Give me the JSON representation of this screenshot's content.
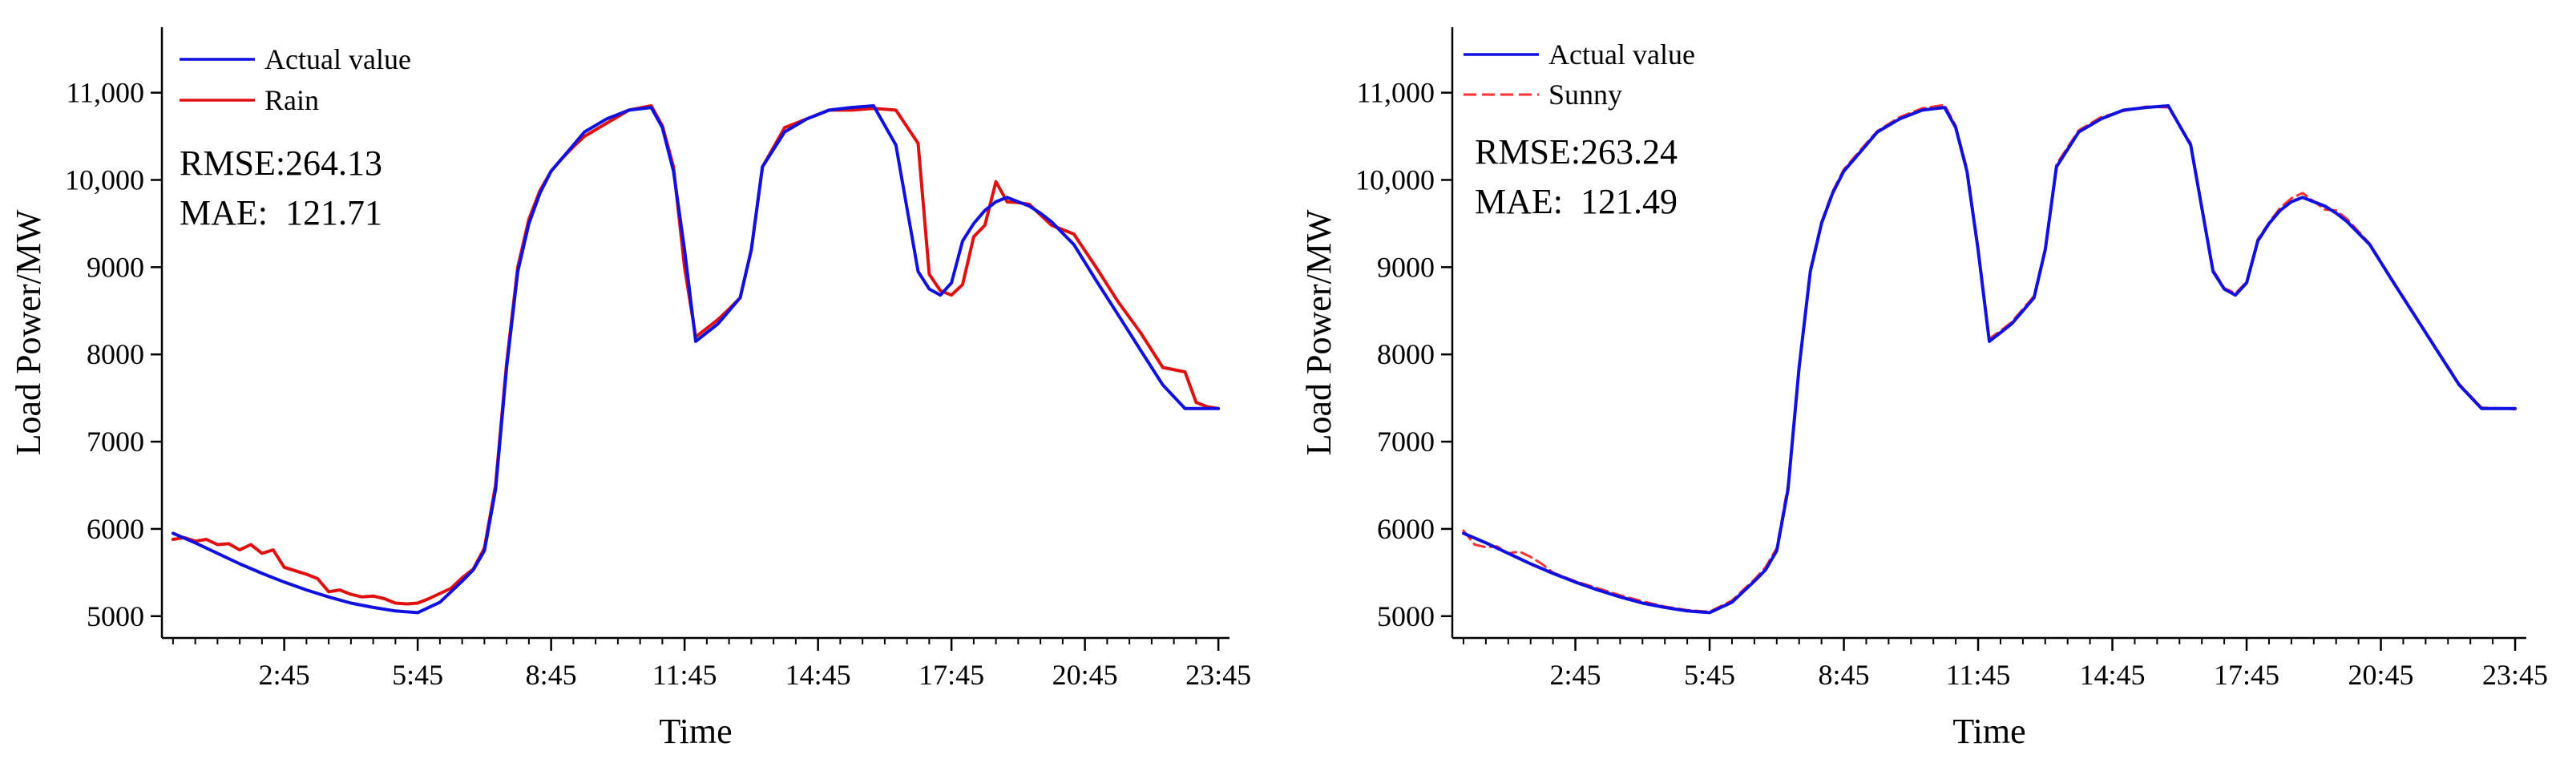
{
  "chart_data": [
    {
      "type": "line",
      "xlabel": "Time",
      "ylabel": "Load Power/MW",
      "xlim": [
        0,
        24
      ],
      "ylim": [
        4750,
        11750
      ],
      "yticks": [
        5000,
        6000,
        7000,
        8000,
        9000,
        10000,
        11000
      ],
      "ytick_labels": [
        "5000",
        "6000",
        "7000",
        "8000",
        "9000",
        "10,000",
        "11,000"
      ],
      "xticks": [
        2.75,
        5.75,
        8.75,
        11.75,
        14.75,
        17.75,
        20.75,
        23.75
      ],
      "xtick_labels": [
        "2:45",
        "5:45",
        "8:45",
        "11:45",
        "14:45",
        "17:45",
        "20:45",
        "23:45"
      ],
      "metrics": {
        "rmse": "RMSE:264.13",
        "mae": "MAE:  121.71"
      },
      "series": [
        {
          "name": "Actual value",
          "color": "#1010e0",
          "dash": "solid",
          "x": [
            0.25,
            0.75,
            1.25,
            1.75,
            2.25,
            2.75,
            3.25,
            3.75,
            4.25,
            4.75,
            5.25,
            5.75,
            6.25,
            6.5,
            6.75,
            7.0,
            7.25,
            7.5,
            7.75,
            8.0,
            8.25,
            8.5,
            8.75,
            9.0,
            9.25,
            9.5,
            10.0,
            10.5,
            11.0,
            11.25,
            11.5,
            11.75,
            12.0,
            12.25,
            12.5,
            12.75,
            13.0,
            13.25,
            13.5,
            14.0,
            14.5,
            15.0,
            15.5,
            16.0,
            16.5,
            17.0,
            17.25,
            17.5,
            17.75,
            18.0,
            18.25,
            18.5,
            18.75,
            19.0,
            19.5,
            19.75,
            20.0,
            20.5,
            21.0,
            21.5,
            22.0,
            22.5,
            23.0,
            23.5,
            23.75
          ],
          "values": [
            5950,
            5840,
            5720,
            5600,
            5490,
            5390,
            5300,
            5220,
            5150,
            5100,
            5060,
            5040,
            5160,
            5280,
            5400,
            5530,
            5750,
            6450,
            7850,
            8950,
            9500,
            9850,
            10100,
            10250,
            10400,
            10550,
            10700,
            10800,
            10830,
            10600,
            10100,
            9200,
            8150,
            8250,
            8350,
            8500,
            8650,
            9200,
            10150,
            10550,
            10700,
            10800,
            10830,
            10850,
            10400,
            8950,
            8750,
            8680,
            8820,
            9300,
            9500,
            9650,
            9750,
            9800,
            9700,
            9620,
            9520,
            9260,
            8850,
            8450,
            8050,
            7650,
            7380,
            7380,
            7380
          ]
        },
        {
          "name": "Rain",
          "color": "#e01010",
          "dash": "solid",
          "x": [
            0.25,
            0.5,
            0.75,
            1.0,
            1.25,
            1.5,
            1.75,
            2.0,
            2.25,
            2.5,
            2.75,
            3.0,
            3.25,
            3.5,
            3.75,
            4.0,
            4.25,
            4.5,
            4.75,
            5.0,
            5.25,
            5.5,
            5.75,
            6.0,
            6.25,
            6.5,
            6.75,
            7.0,
            7.25,
            7.5,
            7.75,
            8.0,
            8.25,
            8.5,
            8.75,
            9.0,
            9.25,
            9.5,
            10.0,
            10.5,
            11.0,
            11.25,
            11.5,
            11.75,
            12.0,
            12.25,
            12.5,
            12.75,
            13.0,
            13.25,
            13.5,
            14.0,
            14.25,
            14.5,
            15.0,
            15.5,
            16.0,
            16.5,
            17.0,
            17.25,
            17.5,
            17.75,
            18.0,
            18.25,
            18.5,
            18.75,
            19.0,
            19.25,
            19.5,
            20.0,
            20.5,
            21.0,
            21.5,
            22.0,
            22.5,
            23.0,
            23.25,
            23.5,
            23.75
          ],
          "values": [
            5880,
            5900,
            5860,
            5880,
            5820,
            5830,
            5760,
            5820,
            5720,
            5760,
            5560,
            5520,
            5480,
            5430,
            5280,
            5300,
            5250,
            5220,
            5230,
            5200,
            5150,
            5140,
            5150,
            5200,
            5260,
            5320,
            5440,
            5540,
            5780,
            6500,
            7900,
            9000,
            9550,
            9880,
            10100,
            10250,
            10380,
            10500,
            10650,
            10800,
            10850,
            10620,
            10150,
            9000,
            8200,
            8300,
            8400,
            8520,
            8650,
            9200,
            10150,
            10600,
            10650,
            10700,
            10800,
            10800,
            10820,
            10800,
            10420,
            8920,
            8730,
            8680,
            8800,
            9350,
            9480,
            9980,
            9750,
            9740,
            9720,
            9480,
            9380,
            9000,
            8600,
            8250,
            7850,
            7800,
            7450,
            7400,
            7380
          ]
        }
      ]
    },
    {
      "type": "line",
      "xlabel": "Time",
      "ylabel": "Load Power/MW",
      "xlim": [
        0,
        24
      ],
      "ylim": [
        4750,
        11750
      ],
      "yticks": [
        5000,
        6000,
        7000,
        8000,
        9000,
        10000,
        11000
      ],
      "ytick_labels": [
        "5000",
        "6000",
        "7000",
        "8000",
        "9000",
        "10,000",
        "11,000"
      ],
      "xticks": [
        2.75,
        5.75,
        8.75,
        11.75,
        14.75,
        17.75,
        20.75,
        23.75
      ],
      "xtick_labels": [
        "2:45",
        "5:45",
        "8:45",
        "11:45",
        "14:45",
        "17:45",
        "20:45",
        "23:45"
      ],
      "metrics": {
        "rmse": "RMSE:263.24",
        "mae": "MAE:  121.49"
      },
      "series": [
        {
          "name": "Actual value",
          "color": "#1010e0",
          "dash": "solid",
          "x": [
            0.25,
            0.75,
            1.25,
            1.75,
            2.25,
            2.75,
            3.25,
            3.75,
            4.25,
            4.75,
            5.25,
            5.75,
            6.25,
            6.5,
            6.75,
            7.0,
            7.25,
            7.5,
            7.75,
            8.0,
            8.25,
            8.5,
            8.75,
            9.0,
            9.25,
            9.5,
            10.0,
            10.5,
            11.0,
            11.25,
            11.5,
            11.75,
            12.0,
            12.25,
            12.5,
            12.75,
            13.0,
            13.25,
            13.5,
            14.0,
            14.5,
            15.0,
            15.5,
            16.0,
            16.5,
            17.0,
            17.25,
            17.5,
            17.75,
            18.0,
            18.25,
            18.5,
            18.75,
            19.0,
            19.5,
            19.75,
            20.0,
            20.5,
            21.0,
            21.5,
            22.0,
            22.5,
            23.0,
            23.5,
            23.75
          ],
          "values": [
            5950,
            5840,
            5720,
            5600,
            5490,
            5390,
            5300,
            5220,
            5150,
            5100,
            5060,
            5040,
            5160,
            5280,
            5400,
            5530,
            5750,
            6450,
            7850,
            8950,
            9500,
            9850,
            10100,
            10250,
            10400,
            10550,
            10700,
            10800,
            10830,
            10600,
            10100,
            9200,
            8150,
            8250,
            8350,
            8500,
            8650,
            9200,
            10150,
            10550,
            10700,
            10800,
            10830,
            10850,
            10400,
            8950,
            8750,
            8680,
            8820,
            9300,
            9500,
            9650,
            9750,
            9800,
            9700,
            9620,
            9520,
            9260,
            8850,
            8450,
            8050,
            7650,
            7380,
            7380,
            7380
          ]
        },
        {
          "name": "Sunny",
          "color": "#ff3030",
          "dash": "dashed",
          "x": [
            0.25,
            0.5,
            0.75,
            1.0,
            1.25,
            1.5,
            1.75,
            2.0,
            2.25,
            2.75,
            3.25,
            3.75,
            4.25,
            4.75,
            5.25,
            5.75,
            6.25,
            6.5,
            6.75,
            7.0,
            7.25,
            7.5,
            7.75,
            8.0,
            8.25,
            8.5,
            8.75,
            9.0,
            9.25,
            9.5,
            10.0,
            10.5,
            11.0,
            11.25,
            11.5,
            11.75,
            12.0,
            12.25,
            12.5,
            12.75,
            13.0,
            13.25,
            13.5,
            14.0,
            14.5,
            15.0,
            15.5,
            16.0,
            16.5,
            17.0,
            17.25,
            17.5,
            17.75,
            18.0,
            18.25,
            18.5,
            18.75,
            19.0,
            19.5,
            19.75,
            20.0,
            20.5,
            21.0,
            21.5,
            22.0,
            22.5,
            23.0,
            23.5,
            23.75
          ],
          "values": [
            5980,
            5820,
            5790,
            5800,
            5720,
            5740,
            5680,
            5600,
            5500,
            5400,
            5320,
            5240,
            5170,
            5110,
            5070,
            5050,
            5180,
            5300,
            5420,
            5560,
            5780,
            6500,
            7880,
            8980,
            9520,
            9870,
            10120,
            10270,
            10420,
            10560,
            10720,
            10820,
            10860,
            10620,
            10130,
            9230,
            8180,
            8270,
            8370,
            8520,
            8670,
            9220,
            10180,
            10570,
            10720,
            10790,
            10840,
            10830,
            10420,
            8970,
            8760,
            8700,
            8830,
            9320,
            9510,
            9680,
            9790,
            9850,
            9660,
            9650,
            9550,
            9270,
            8860,
            8460,
            8060,
            7660,
            7390,
            7380,
            7370
          ]
        }
      ]
    }
  ]
}
